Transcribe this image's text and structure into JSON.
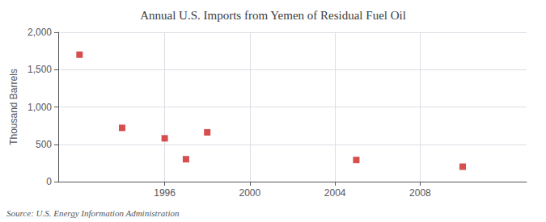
{
  "chart_data": {
    "type": "scatter",
    "title": "Annual U.S. Imports from Yemen of Residual Fuel Oil",
    "ylabel": "Thousand Barrels",
    "annotation": "Source: U.S. Energy Information Administration",
    "x": [
      1992,
      1994,
      1996,
      1997,
      1998,
      2005,
      2010
    ],
    "values": [
      1700,
      720,
      580,
      300,
      660,
      290,
      200
    ],
    "color": "#cc2222",
    "marker": "square",
    "xlim": [
      1991,
      2013
    ],
    "xticks": [
      1996,
      2000,
      2004,
      2008
    ],
    "ylim": [
      0,
      2000
    ],
    "yticks": [
      0,
      500,
      {
        "value": 1000,
        "label": "1,000"
      },
      {
        "value": 1500,
        "label": "1,500"
      },
      {
        "value": 2000,
        "label": "2,000"
      }
    ],
    "grid": true
  }
}
